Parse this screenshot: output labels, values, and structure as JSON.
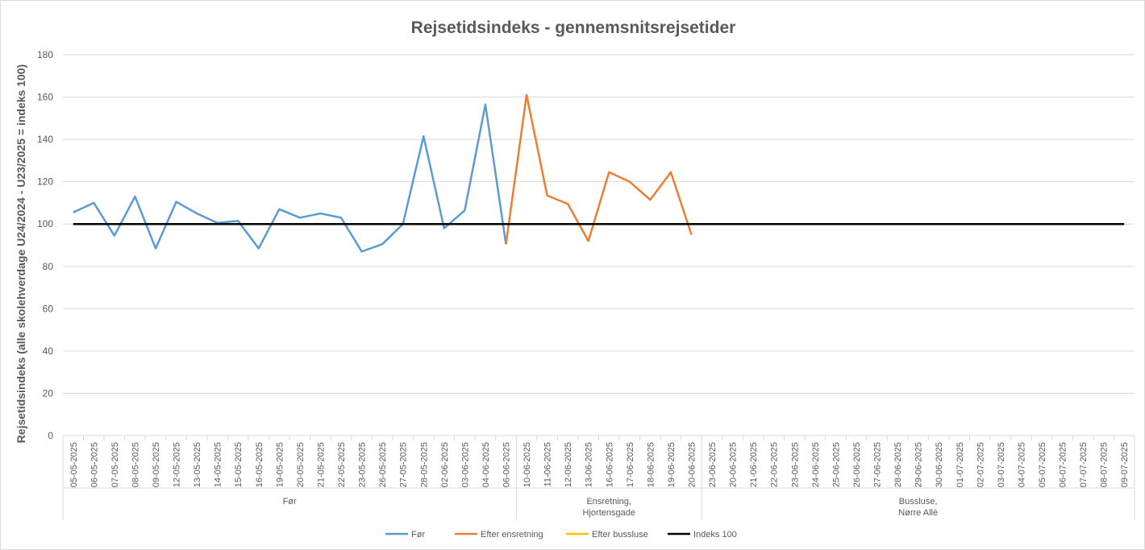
{
  "chart_data": {
    "type": "line",
    "title": "Rejsetidsindeks - gennemsnitsrejsetider",
    "xlabel": "",
    "ylabel": "Rejsetidsindeks (alle skolehverdage U24/2024 - U23/2025 = indeks 100)",
    "ylim": [
      0,
      180
    ],
    "yticks": [
      0,
      20,
      40,
      60,
      80,
      100,
      120,
      140,
      160,
      180
    ],
    "grid": true,
    "legend_position": "bottom",
    "categories": [
      "05-05-2025",
      "06-05-2025",
      "07-05-2025",
      "08-05-2025",
      "09-05-2025",
      "12-05-2025",
      "13-05-2025",
      "14-05-2025",
      "15-05-2025",
      "16-05-2025",
      "19-05-2025",
      "20-05-2025",
      "21-05-2025",
      "22-05-2025",
      "23-05-2025",
      "26-05-2025",
      "27-05-2025",
      "28-05-2025",
      "02-06-2025",
      "03-06-2025",
      "04-06-2025",
      "06-06-2025",
      "10-06-2025",
      "11-06-2025",
      "12-06-2025",
      "13-06-2025",
      "16-06-2025",
      "17-06-2025",
      "18-06-2025",
      "19-06-2025",
      "20-06-2025",
      "23-06-2025",
      "20-06-2025",
      "21-06-2025",
      "22-06-2025",
      "23-06-2025",
      "24-06-2025",
      "25-06-2025",
      "26-06-2025",
      "27-06-2025",
      "28-06-2025",
      "29-06-2025",
      "30-06-2025",
      "01-07-2025",
      "02-07-2025",
      "03-07-2025",
      "04-07-2025",
      "05-07-2025",
      "06-07-2025",
      "07-07-2025",
      "08-07-2025",
      "09-07-2025"
    ],
    "groups": [
      {
        "lines": [
          "Før"
        ],
        "start": 0,
        "end": 21
      },
      {
        "lines": [
          "Ensretning,",
          "Hjortensgade"
        ],
        "start": 22,
        "end": 30
      },
      {
        "lines": [
          "Bussluse,",
          "Nørre Allé"
        ],
        "start": 31,
        "end": 51
      }
    ],
    "series": [
      {
        "name": "Før",
        "color": "#5b9bd5",
        "values": [
          105.5,
          110,
          94.5,
          113,
          88.5,
          110.5,
          105,
          100.5,
          101.5,
          88.5,
          107,
          103,
          105,
          103,
          87,
          90.5,
          100,
          141.5,
          98,
          106.5,
          156.5,
          90.5,
          null,
          null,
          null,
          null,
          null,
          null,
          null,
          null,
          null,
          null,
          null,
          null,
          null,
          null,
          null,
          null,
          null,
          null,
          null,
          null,
          null,
          null,
          null,
          null,
          null,
          null,
          null,
          null,
          null,
          null
        ]
      },
      {
        "name": "Efter ensretning",
        "color": "#ed7d31",
        "values": [
          null,
          null,
          null,
          null,
          null,
          null,
          null,
          null,
          null,
          null,
          null,
          null,
          null,
          null,
          null,
          null,
          null,
          null,
          null,
          null,
          null,
          90.5,
          161,
          113.5,
          109.5,
          92,
          124.5,
          120,
          111.5,
          124.5,
          95,
          null,
          null,
          null,
          null,
          null,
          null,
          null,
          null,
          null,
          null,
          null,
          null,
          null,
          null,
          null,
          null,
          null,
          null,
          null,
          null,
          null
        ]
      },
      {
        "name": "Efter bussluse",
        "color": "#ffc000",
        "values": [
          null,
          null,
          null,
          null,
          null,
          null,
          null,
          null,
          null,
          null,
          null,
          null,
          null,
          null,
          null,
          null,
          null,
          null,
          null,
          null,
          null,
          null,
          null,
          null,
          null,
          null,
          null,
          null,
          null,
          null,
          null,
          null,
          null,
          null,
          null,
          null,
          null,
          null,
          null,
          null,
          null,
          null,
          null,
          null,
          null,
          null,
          null,
          null,
          null,
          null,
          null,
          null
        ]
      },
      {
        "name": "Indeks 100",
        "color": "#000000",
        "values": [
          100,
          100,
          100,
          100,
          100,
          100,
          100,
          100,
          100,
          100,
          100,
          100,
          100,
          100,
          100,
          100,
          100,
          100,
          100,
          100,
          100,
          100,
          100,
          100,
          100,
          100,
          100,
          100,
          100,
          100,
          100,
          100,
          100,
          100,
          100,
          100,
          100,
          100,
          100,
          100,
          100,
          100,
          100,
          100,
          100,
          100,
          100,
          100,
          100,
          100,
          100,
          100
        ]
      }
    ]
  }
}
